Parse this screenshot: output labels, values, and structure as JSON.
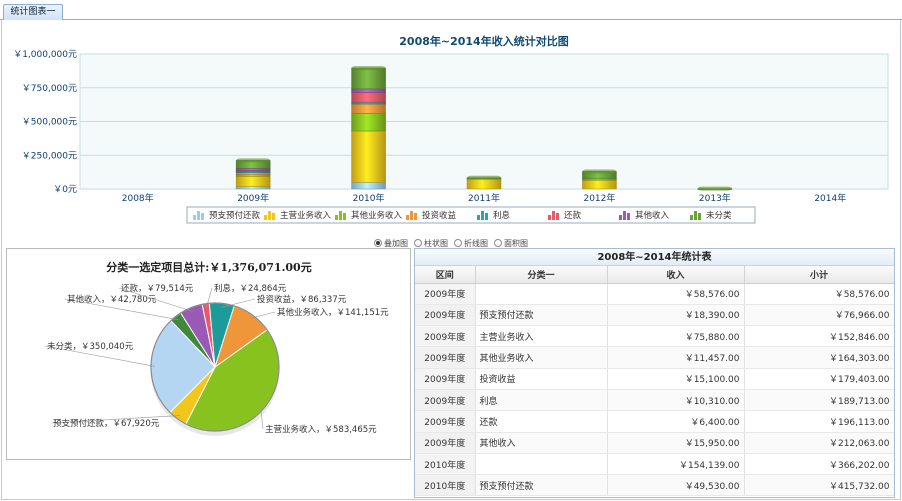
{
  "tab": {
    "label": "统计图表一"
  },
  "chart_data": [
    {
      "type": "bar",
      "stacked": true,
      "title": "2008年~2014年收入统计对比图",
      "categories": [
        "2008年",
        "2009年",
        "2010年",
        "2011年",
        "2012年",
        "2013年",
        "2014年"
      ],
      "ytick_labels": [
        "￥1,000,000元",
        "￥750,000元",
        "￥500,000元",
        "￥250,000元",
        "￥0元"
      ],
      "ylim": [
        0,
        1000000
      ],
      "series": [
        {
          "name": "预支预付还款",
          "color": "#9ccbf0",
          "values": [
            0,
            18390,
            49530,
            0,
            0,
            0,
            0
          ]
        },
        {
          "name": "主营业务收入",
          "color": "#f2c61b",
          "values": [
            0,
            75880,
            380000,
            75000,
            65000,
            0,
            0
          ]
        },
        {
          "name": "其他业务收入",
          "color": "#88c21f",
          "values": [
            0,
            11457,
            130000,
            0,
            10000,
            0,
            0
          ]
        },
        {
          "name": "投资收益",
          "color": "#f0963a",
          "values": [
            0,
            15100,
            70000,
            0,
            0,
            0,
            0
          ]
        },
        {
          "name": "利息",
          "color": "#2aa6a6",
          "values": [
            0,
            10310,
            14000,
            0,
            0,
            0,
            0
          ]
        },
        {
          "name": "还款",
          "color": "#e85a6a",
          "values": [
            0,
            6400,
            72000,
            0,
            0,
            0,
            0
          ]
        },
        {
          "name": "其他收入",
          "color": "#9b59b6",
          "values": [
            0,
            15950,
            26000,
            0,
            0,
            0,
            0
          ]
        },
        {
          "name": "未分类",
          "color": "#6aa23a",
          "values": [
            0,
            58576,
            154139,
            8000,
            55000,
            3000,
            0
          ]
        }
      ],
      "legend": "bottom"
    },
    {
      "type": "pie",
      "title": "分类一选定项目总计:￥1,376,071.00元",
      "slices": [
        {
          "label": "主营业务收入，￥583,465元",
          "value": 583465,
          "color": "#88c21f"
        },
        {
          "label": "预支预付还款，￥67,920元",
          "value": 67920,
          "color": "#f2c61b"
        },
        {
          "label": "未分类，￥350,040元",
          "value": 350040,
          "color": "#b4d6f2"
        },
        {
          "label": "其他收入，￥42,780元",
          "value": 42780,
          "color": "#3f8a3a"
        },
        {
          "label": "还款，￥79,514元",
          "value": 79514,
          "color": "#9b59b6"
        },
        {
          "label": "利息，￥24,864元",
          "value": 24864,
          "color": "#e85a6a"
        },
        {
          "label": "投资收益，￥86,337元",
          "value": 86337,
          "color": "#1d9a9a"
        },
        {
          "label": "其他业务收入，￥141,151元",
          "value": 141151,
          "color": "#f0963a"
        }
      ]
    }
  ],
  "chart_types": [
    {
      "label": "叠加图",
      "checked": true
    },
    {
      "label": "柱状图",
      "checked": false
    },
    {
      "label": "折线图",
      "checked": false
    },
    {
      "label": "面积图",
      "checked": false
    }
  ],
  "stats_table": {
    "title": "2008年~2014年统计表",
    "headers": [
      "区间",
      "分类一",
      "收入",
      "小计"
    ],
    "rows": [
      [
        "2009年度",
        "",
        "￥58,576.00",
        "￥58,576.00"
      ],
      [
        "2009年度",
        "预支预付还款",
        "￥18,390.00",
        "￥76,966.00"
      ],
      [
        "2009年度",
        "主营业务收入",
        "￥75,880.00",
        "￥152,846.00"
      ],
      [
        "2009年度",
        "其他业务收入",
        "￥11,457.00",
        "￥164,303.00"
      ],
      [
        "2009年度",
        "投资收益",
        "￥15,100.00",
        "￥179,403.00"
      ],
      [
        "2009年度",
        "利息",
        "￥10,310.00",
        "￥189,713.00"
      ],
      [
        "2009年度",
        "还款",
        "￥6,400.00",
        "￥196,113.00"
      ],
      [
        "2009年度",
        "其他收入",
        "￥15,950.00",
        "￥212,063.00"
      ],
      [
        "2010年度",
        "",
        "￥154,139.00",
        "￥366,202.00"
      ],
      [
        "2010年度",
        "预支预付还款",
        "￥49,530.00",
        "￥415,732.00"
      ]
    ]
  }
}
